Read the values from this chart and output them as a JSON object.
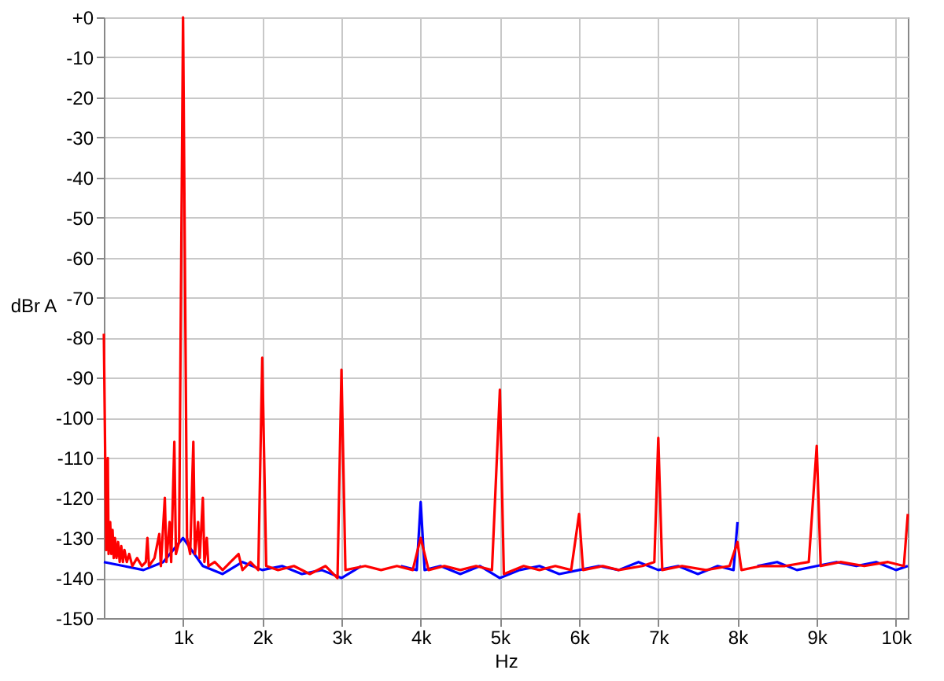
{
  "chart_data": {
    "type": "line",
    "xlabel": "Hz",
    "ylabel": "dBr A",
    "xlim": [
      0,
      10150
    ],
    "ylim": [
      -150,
      0
    ],
    "xticks": [
      {
        "value": 1000,
        "label": "1k"
      },
      {
        "value": 2000,
        "label": "2k"
      },
      {
        "value": 3000,
        "label": "3k"
      },
      {
        "value": 4000,
        "label": "4k"
      },
      {
        "value": 5000,
        "label": "5k"
      },
      {
        "value": 6000,
        "label": "6k"
      },
      {
        "value": 7000,
        "label": "7k"
      },
      {
        "value": 8000,
        "label": "8k"
      },
      {
        "value": 9000,
        "label": "9k"
      },
      {
        "value": 10000,
        "label": "10k"
      }
    ],
    "yticks": [
      -150,
      -140,
      -130,
      -120,
      -110,
      -100,
      -90,
      -80,
      -70,
      -60,
      -50,
      -40,
      -30,
      -20,
      -10,
      {
        "value": 0,
        "label": "+0"
      }
    ],
    "grid": true,
    "legend": false,
    "line_style": "solid",
    "marker": "none",
    "series": [
      {
        "color": "#0000ff",
        "x": [
          0,
          250,
          500,
          750,
          1000,
          1250,
          1500,
          1750,
          2000,
          2250,
          2500,
          2750,
          3000,
          3250,
          3500,
          3750,
          3950,
          4000,
          4050,
          4250,
          4500,
          4750,
          5000,
          5250,
          5500,
          5750,
          6000,
          6250,
          6500,
          6750,
          7000,
          7250,
          7500,
          7750,
          7950,
          8000,
          8050,
          8250,
          8500,
          8750,
          9000,
          9250,
          9500,
          9750,
          10000,
          10150
        ],
        "values": [
          -136,
          -137,
          -138,
          -136,
          -130,
          -137,
          -139,
          -136,
          -138,
          -137,
          -139,
          -138,
          -140,
          -137,
          null,
          -137,
          -138,
          -121,
          -138,
          -137,
          -139,
          -137,
          -140,
          -138,
          -137,
          -139,
          -138,
          -137,
          -138,
          -136,
          -138,
          -137,
          -139,
          -137,
          -138,
          -126,
          null,
          -137,
          -136,
          -138,
          -137,
          -136,
          -137,
          -136,
          -138,
          -137
        ]
      },
      {
        "color": "#ff0000",
        "x": [
          0,
          30,
          50,
          60,
          80,
          95,
          110,
          125,
          140,
          160,
          180,
          200,
          220,
          240,
          260,
          290,
          320,
          360,
          420,
          480,
          530,
          550,
          570,
          640,
          700,
          720,
          770,
          790,
          830,
          850,
          890,
          910,
          950,
          1000,
          1050,
          1090,
          1130,
          1150,
          1190,
          1210,
          1250,
          1270,
          1300,
          1320,
          1400,
          1500,
          1600,
          1700,
          1750,
          1850,
          1950,
          2000,
          2050,
          2200,
          2400,
          2600,
          2800,
          2950,
          3000,
          3050,
          3300,
          3500,
          3700,
          3900,
          4000,
          4100,
          4300,
          4500,
          4700,
          4900,
          5000,
          5050,
          5300,
          5500,
          5700,
          5900,
          6000,
          6050,
          6300,
          6500,
          6800,
          6950,
          7000,
          7050,
          7300,
          7600,
          7900,
          8000,
          8050,
          8300,
          8600,
          8900,
          9000,
          9050,
          9300,
          9600,
          9900,
          10100,
          10150
        ],
        "values": [
          -79,
          -133,
          -110,
          -134,
          -126,
          -134,
          -128,
          -135,
          -130,
          -135,
          -131,
          -136,
          -132,
          -136,
          -133,
          -136,
          -134,
          -137,
          -135,
          -137,
          -136,
          -130,
          -137,
          -135,
          -129,
          -137,
          -120,
          -136,
          -126,
          -136,
          -106,
          -134,
          -131,
          0,
          -130,
          -134,
          -106,
          -134,
          -126,
          -135,
          -120,
          -136,
          -130,
          -137,
          -136,
          -138,
          -136,
          -134,
          -138,
          -136,
          -138,
          -85,
          -137,
          -138,
          -137,
          -139,
          -137,
          -140,
          -88,
          -138,
          -137,
          -138,
          -137,
          -138,
          -130,
          -138,
          -137,
          -138,
          -137,
          -138,
          -93,
          -139,
          -137,
          -138,
          -137,
          -138,
          -124,
          -138,
          -137,
          -138,
          -137,
          -136,
          -105,
          -138,
          -137,
          -138,
          -137,
          -131,
          -138,
          -137,
          -137,
          -136,
          -107,
          -137,
          -136,
          -137,
          -136,
          -137,
          -124
        ]
      }
    ]
  }
}
